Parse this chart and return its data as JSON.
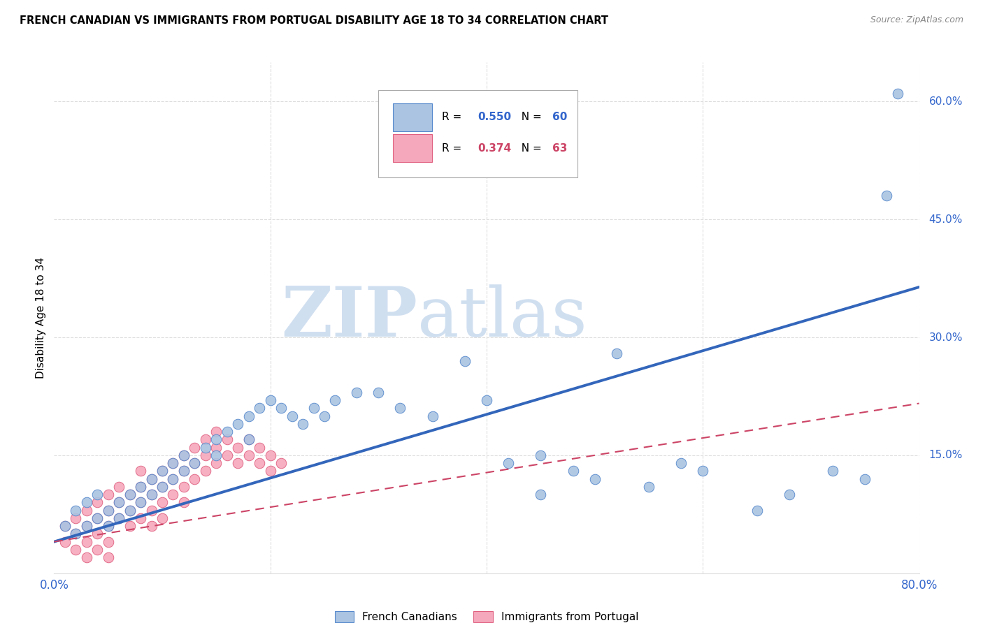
{
  "title": "FRENCH CANADIAN VS IMMIGRANTS FROM PORTUGAL DISABILITY AGE 18 TO 34 CORRELATION CHART",
  "source": "Source: ZipAtlas.com",
  "ylabel": "Disability Age 18 to 34",
  "xlim": [
    0.0,
    0.8
  ],
  "ylim": [
    0.0,
    0.65
  ],
  "blue_R": 0.55,
  "blue_N": 60,
  "pink_R": 0.374,
  "pink_N": 63,
  "blue_color": "#aac4e2",
  "pink_color": "#f5a8bc",
  "blue_edge_color": "#5588cc",
  "pink_edge_color": "#e06080",
  "blue_line_color": "#3366bb",
  "pink_line_color": "#cc4466",
  "tick_color": "#3366cc",
  "grid_color": "#dddddd",
  "watermark_color": "#d0dff0",
  "blue_line_intercept": 0.04,
  "blue_line_slope": 0.405,
  "pink_line_intercept": 0.04,
  "pink_line_slope": 0.22,
  "blue_scatter_x": [
    0.01,
    0.02,
    0.02,
    0.03,
    0.03,
    0.04,
    0.04,
    0.05,
    0.05,
    0.06,
    0.06,
    0.07,
    0.07,
    0.08,
    0.08,
    0.09,
    0.09,
    0.1,
    0.1,
    0.11,
    0.11,
    0.12,
    0.12,
    0.13,
    0.14,
    0.15,
    0.15,
    0.16,
    0.17,
    0.18,
    0.18,
    0.19,
    0.2,
    0.21,
    0.22,
    0.23,
    0.24,
    0.25,
    0.26,
    0.28,
    0.3,
    0.32,
    0.35,
    0.38,
    0.4,
    0.42,
    0.45,
    0.45,
    0.48,
    0.5,
    0.52,
    0.55,
    0.58,
    0.6,
    0.65,
    0.68,
    0.72,
    0.75,
    0.77,
    0.78
  ],
  "blue_scatter_y": [
    0.06,
    0.05,
    0.08,
    0.06,
    0.09,
    0.07,
    0.1,
    0.08,
    0.06,
    0.09,
    0.07,
    0.1,
    0.08,
    0.11,
    0.09,
    0.12,
    0.1,
    0.13,
    0.11,
    0.14,
    0.12,
    0.15,
    0.13,
    0.14,
    0.16,
    0.17,
    0.15,
    0.18,
    0.19,
    0.2,
    0.17,
    0.21,
    0.22,
    0.21,
    0.2,
    0.19,
    0.21,
    0.2,
    0.22,
    0.23,
    0.23,
    0.21,
    0.2,
    0.27,
    0.22,
    0.14,
    0.15,
    0.1,
    0.13,
    0.12,
    0.28,
    0.11,
    0.14,
    0.13,
    0.08,
    0.1,
    0.13,
    0.12,
    0.48,
    0.61
  ],
  "pink_scatter_x": [
    0.01,
    0.01,
    0.02,
    0.02,
    0.02,
    0.03,
    0.03,
    0.03,
    0.04,
    0.04,
    0.04,
    0.05,
    0.05,
    0.05,
    0.05,
    0.06,
    0.06,
    0.06,
    0.07,
    0.07,
    0.07,
    0.08,
    0.08,
    0.08,
    0.08,
    0.09,
    0.09,
    0.09,
    0.09,
    0.1,
    0.1,
    0.1,
    0.1,
    0.11,
    0.11,
    0.11,
    0.12,
    0.12,
    0.12,
    0.12,
    0.13,
    0.13,
    0.13,
    0.14,
    0.14,
    0.14,
    0.15,
    0.15,
    0.15,
    0.16,
    0.16,
    0.17,
    0.17,
    0.18,
    0.18,
    0.19,
    0.19,
    0.2,
    0.2,
    0.21,
    0.03,
    0.04,
    0.05
  ],
  "pink_scatter_y": [
    0.04,
    0.06,
    0.05,
    0.07,
    0.03,
    0.06,
    0.04,
    0.08,
    0.07,
    0.05,
    0.09,
    0.08,
    0.06,
    0.1,
    0.04,
    0.09,
    0.07,
    0.11,
    0.08,
    0.1,
    0.06,
    0.09,
    0.07,
    0.11,
    0.13,
    0.1,
    0.08,
    0.12,
    0.06,
    0.11,
    0.09,
    0.13,
    0.07,
    0.12,
    0.1,
    0.14,
    0.13,
    0.11,
    0.15,
    0.09,
    0.14,
    0.12,
    0.16,
    0.15,
    0.13,
    0.17,
    0.16,
    0.14,
    0.18,
    0.17,
    0.15,
    0.16,
    0.14,
    0.17,
    0.15,
    0.16,
    0.14,
    0.15,
    0.13,
    0.14,
    0.02,
    0.03,
    0.02
  ]
}
